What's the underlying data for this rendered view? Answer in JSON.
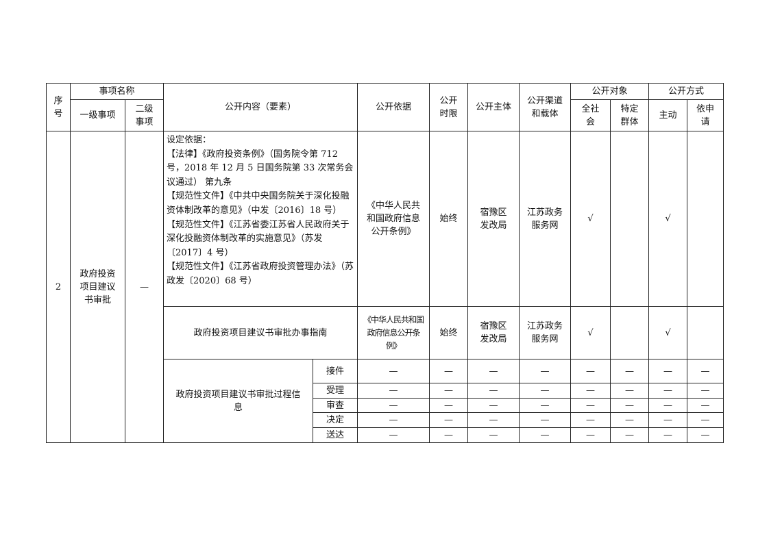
{
  "header": {
    "seq": "序号",
    "item_name": "事项名称",
    "level1": "一级事项",
    "level2": "二级事项",
    "content": "公开内容（要素）",
    "basis": "公开依据",
    "time_limit": "公开时限",
    "subject": "公开主体",
    "channel": "公开渠道和载体",
    "target": "公开对象",
    "target_all": "全社会",
    "target_specific": "特定群体",
    "method": "公开方式",
    "method_active": "主动",
    "method_request": "依申请"
  },
  "row": {
    "seq": "2",
    "level1": "政府投资项目建议书审批",
    "level2": "—",
    "entries": [
      {
        "content": [
          "设定依据：",
          "【法律】《政府投资条例》（国务院令第 712 号，2018 年 12 月 5 日国务院第 33 次常务会议通过） 第九条",
          "【规范性文件】《中共中央国务院关于深化投融资体制改革的意见》（中发〔2016〕18 号）",
          "【规范性文件】《江苏省委江苏省人民政府关于深化投融资体制改革的实施意见》（苏发〔2017〕4 号）",
          "【规范性文件】《江苏省政府投资管理办法》（苏政发〔2020〕68 号）"
        ],
        "basis": "《中华人民共和国政府信息公开条例》",
        "time_limit": "始终",
        "subject": "宿豫区发改局",
        "channel": "江苏政务服务网",
        "target_all": "√",
        "target_specific": "",
        "method_active": "√",
        "method_request": ""
      },
      {
        "content": "政府投资项目建议书审批办事指南",
        "basis": "《中华人民共和国政府信息公开条例》",
        "time_limit": "始终",
        "subject": "宿豫区发改局",
        "channel": "江苏政务服务网",
        "target_all": "√",
        "target_specific": "",
        "method_active": "√",
        "method_request": ""
      }
    ],
    "process": {
      "label": "政府投资项目建议书审批过程信息",
      "stages": [
        "接件",
        "受理",
        "审查",
        "决定",
        "送达"
      ],
      "placeholder": "—"
    }
  }
}
